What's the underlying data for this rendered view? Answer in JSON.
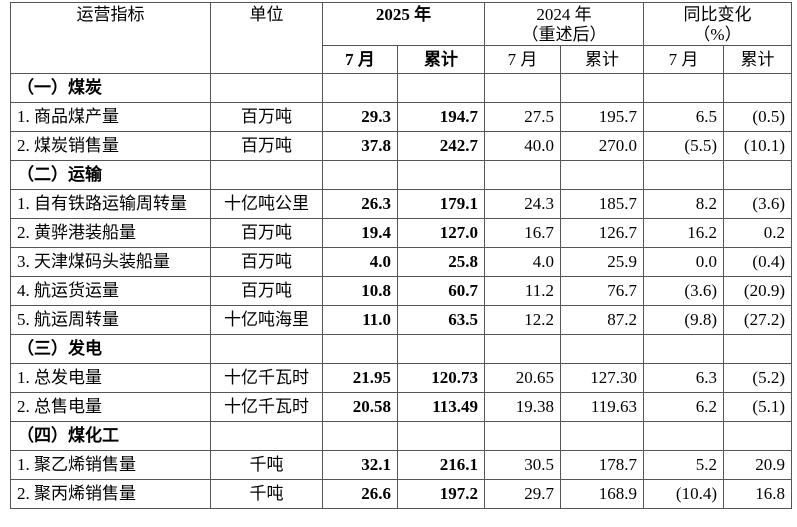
{
  "header": {
    "indicator": "运营指标",
    "unit": "单位",
    "y2025": "2025 年",
    "y2024": "2024 年",
    "y2024_note": "（重述后）",
    "change": "同比变化",
    "change_unit": "（%）",
    "sub": [
      "7 月",
      "累计",
      "7 月",
      "累计",
      "7 月",
      "累计"
    ]
  },
  "sections": [
    {
      "title": "（一）煤炭",
      "rows": [
        [
          "1. 商品煤产量",
          "百万吨",
          "29.3",
          "194.7",
          "27.5",
          "195.7",
          "6.5",
          "(0.5)"
        ],
        [
          "2. 煤炭销售量",
          "百万吨",
          "37.8",
          "242.7",
          "40.0",
          "270.0",
          "(5.5)",
          "(10.1)"
        ]
      ]
    },
    {
      "title": "（二）运输",
      "rows": [
        [
          "1. 自有铁路运输周转量",
          "十亿吨公里",
          "26.3",
          "179.1",
          "24.3",
          "185.7",
          "8.2",
          "(3.6)"
        ],
        [
          "2. 黄骅港装船量",
          "百万吨",
          "19.4",
          "127.0",
          "16.7",
          "126.7",
          "16.2",
          "0.2"
        ],
        [
          "3. 天津煤码头装船量",
          "百万吨",
          "4.0",
          "25.8",
          "4.0",
          "25.9",
          "0.0",
          "(0.4)"
        ],
        [
          "4. 航运货运量",
          "百万吨",
          "10.8",
          "60.7",
          "11.2",
          "76.7",
          "(3.6)",
          "(20.9)"
        ],
        [
          "5. 航运周转量",
          "十亿吨海里",
          "11.0",
          "63.5",
          "12.2",
          "87.2",
          "(9.8)",
          "(27.2)"
        ]
      ]
    },
    {
      "title": "（三）发电",
      "rows": [
        [
          "1. 总发电量",
          "十亿千瓦时",
          "21.95",
          "120.73",
          "20.65",
          "127.30",
          "6.3",
          "(5.2)"
        ],
        [
          "2. 总售电量",
          "十亿千瓦时",
          "20.58",
          "113.49",
          "19.38",
          "119.63",
          "6.2",
          "(5.1)"
        ]
      ]
    },
    {
      "title": "（四）煤化工",
      "rows": [
        [
          "1. 聚乙烯销售量",
          "千吨",
          "32.1",
          "216.1",
          "30.5",
          "178.7",
          "5.2",
          "20.9"
        ],
        [
          "2. 聚丙烯销售量",
          "千吨",
          "26.6",
          "197.2",
          "29.7",
          "168.9",
          "(10.4)",
          "16.8"
        ]
      ]
    }
  ]
}
